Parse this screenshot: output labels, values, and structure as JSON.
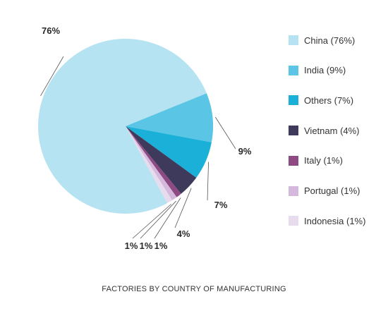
{
  "chart_data": {
    "type": "pie",
    "title": "FACTORIES BY COUNTRY OF MANUFACTURING",
    "slices": [
      {
        "name": "China",
        "value": 76,
        "label": "76%",
        "legend": "China (76%)",
        "color": "#b5e3f1"
      },
      {
        "name": "India",
        "value": 9,
        "label": "9%",
        "legend": "India (9%)",
        "color": "#5ac5e4"
      },
      {
        "name": "Others",
        "value": 7,
        "label": "7%",
        "legend": "Others (7%)",
        "color": "#1ab0d8"
      },
      {
        "name": "Vietnam",
        "value": 4,
        "label": "4%",
        "legend": "Vietnam (4%)",
        "color": "#3d3a5c"
      },
      {
        "name": "Italy",
        "value": 1,
        "label": "1%",
        "legend": "Italy (1%)",
        "color": "#8e4a82"
      },
      {
        "name": "Portugal",
        "value": 1,
        "label": "1%",
        "legend": "Portugal (1%)",
        "color": "#d4b9dd"
      },
      {
        "name": "Indonesia",
        "value": 1,
        "label": "1%",
        "legend": "Indonesia (1%)",
        "color": "#e7dcee"
      }
    ],
    "legend_position": "right"
  }
}
